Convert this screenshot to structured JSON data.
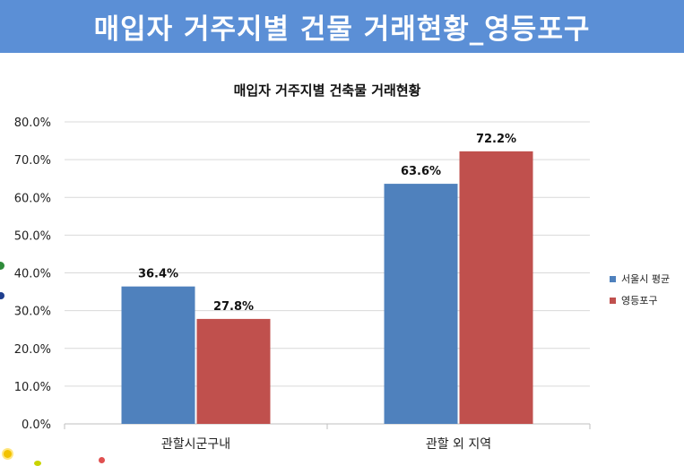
{
  "header": {
    "title": "매입자 거주지별 건물 거래현황_영등포구"
  },
  "chart_data": {
    "type": "bar",
    "title": "매입자 거주지별 건축물 거래현황",
    "categories": [
      "관할시군구내",
      "관할 외 지역"
    ],
    "series": [
      {
        "name": "서울시 평균",
        "values": [
          36.4,
          63.6
        ],
        "color": "#4f81bd"
      },
      {
        "name": "영등포구",
        "values": [
          27.8,
          72.2
        ],
        "color": "#c0504d"
      }
    ],
    "ylim": [
      0,
      80
    ],
    "yticks": [
      "0.0%",
      "10.0%",
      "20.0%",
      "30.0%",
      "40.0%",
      "50.0%",
      "60.0%",
      "70.0%",
      "80.0%"
    ],
    "value_labels": [
      [
        "36.4%",
        "63.6%"
      ],
      [
        "27.8%",
        "72.2%"
      ]
    ],
    "grid": true,
    "legend_position": "right"
  }
}
